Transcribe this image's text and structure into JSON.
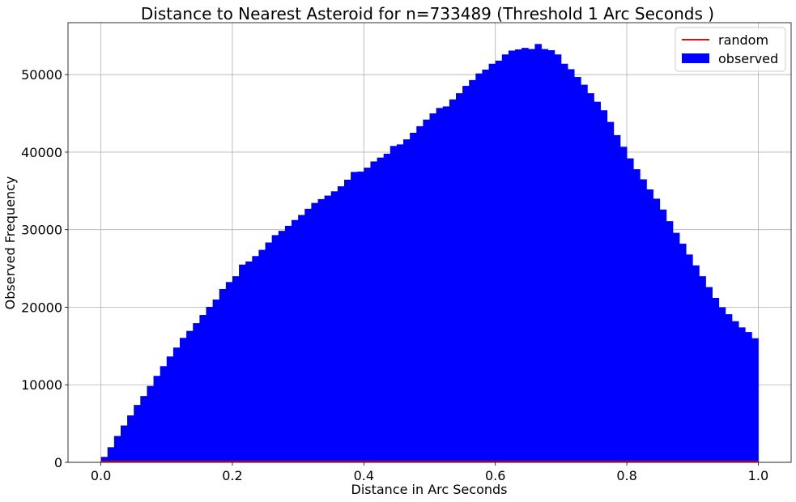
{
  "chart_data": {
    "type": "bar",
    "title": "Distance to Nearest Asteroid for n=733489 (Threshold 1 Arc Seconds )",
    "xlabel": "Distance in Arc Seconds",
    "ylabel": "Observed Frequency",
    "xlim": [
      -0.05,
      1.05
    ],
    "ylim": [
      0,
      56700
    ],
    "grid": true,
    "legend_position": "top-right",
    "x_ticks": [
      0.0,
      0.2,
      0.4,
      0.6,
      0.8,
      1.0
    ],
    "x_tick_labels": [
      "0.0",
      "0.2",
      "0.4",
      "0.6",
      "0.8",
      "1.0"
    ],
    "y_ticks": [
      0,
      10000,
      20000,
      30000,
      40000,
      50000
    ],
    "y_tick_labels": [
      "0",
      "10000",
      "20000",
      "30000",
      "40000",
      "50000"
    ],
    "bin_start": 0.0,
    "bin_width": 0.01,
    "series": [
      {
        "name": "observed",
        "color": "#0000ff",
        "values": [
          700,
          1950,
          3400,
          4750,
          6050,
          7400,
          8550,
          9850,
          11150,
          12400,
          13650,
          14800,
          16050,
          16950,
          17950,
          19000,
          20050,
          21000,
          22350,
          23250,
          24000,
          25500,
          25900,
          26600,
          27400,
          28350,
          29300,
          29850,
          30500,
          31250,
          31900,
          32700,
          33450,
          33950,
          34400,
          34950,
          35600,
          36450,
          37450,
          37500,
          38000,
          38800,
          39300,
          39800,
          40800,
          41000,
          41650,
          42500,
          43350,
          44200,
          45000,
          45700,
          45900,
          46800,
          47600,
          48550,
          49300,
          50150,
          50650,
          51400,
          51800,
          52600,
          53100,
          53250,
          53450,
          53300,
          53950,
          53300,
          53150,
          52600,
          51400,
          50700,
          49700,
          48700,
          47600,
          46500,
          45400,
          43900,
          42200,
          40700,
          39200,
          37800,
          36500,
          35200,
          34000,
          32600,
          31100,
          29600,
          28200,
          26800,
          25400,
          24000,
          22600,
          21200,
          20000,
          19100,
          18200,
          17400,
          16800,
          16000
        ]
      },
      {
        "name": "random",
        "color": "#ff0000",
        "type": "line",
        "x": [
          0.0,
          1.0
        ],
        "values": [
          0,
          0
        ]
      }
    ]
  }
}
